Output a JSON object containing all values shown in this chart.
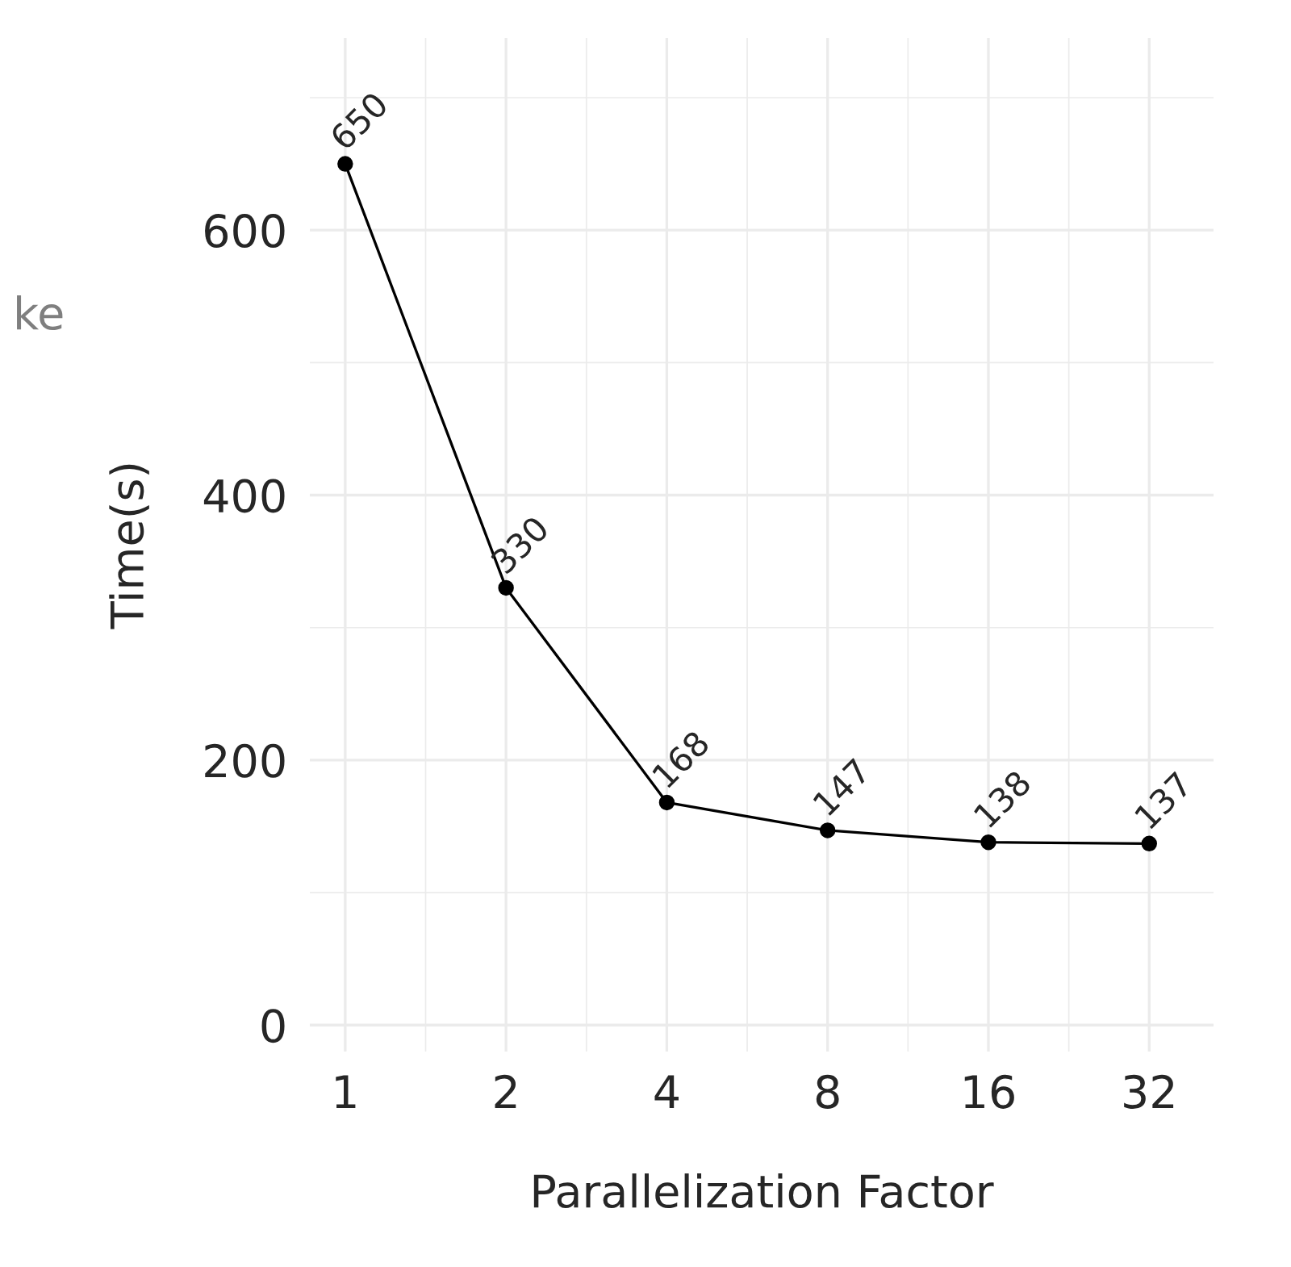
{
  "chart_data": {
    "type": "line",
    "xlabel": "Parallelization Factor",
    "ylabel": "Time(s)",
    "categories": [
      "1",
      "2",
      "4",
      "8",
      "16",
      "32"
    ],
    "series": [
      {
        "color": "#000000",
        "values": [
          650,
          330,
          168,
          147,
          138,
          137
        ]
      }
    ],
    "ylim": [
      -20,
      745
    ],
    "yticks": [
      0,
      200,
      400,
      600
    ],
    "grid": true,
    "marker": "circle",
    "line_style": "solid",
    "data_labels": true,
    "annotations": [
      "ke"
    ]
  }
}
